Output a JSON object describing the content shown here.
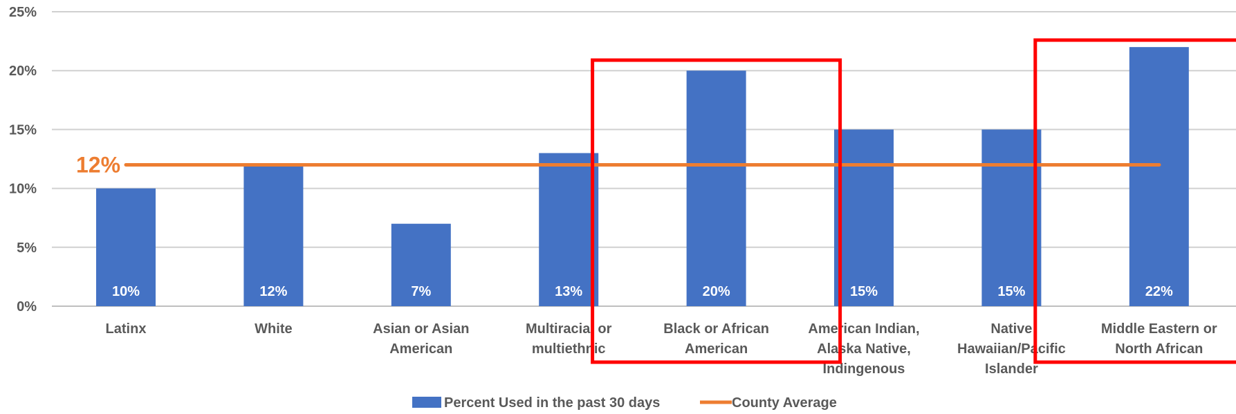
{
  "chart_data": {
    "type": "bar",
    "categories": [
      [
        "Latinx"
      ],
      [
        "White"
      ],
      [
        "Asian or Asian",
        "American"
      ],
      [
        "Multiracial or",
        "multiethnic"
      ],
      [
        "Black or African",
        "American"
      ],
      [
        "American Indian,",
        "Alaska Native,",
        "Indingenous"
      ],
      [
        "Native",
        "Hawaiian/Pacific",
        "Islander"
      ],
      [
        "Middle Eastern or",
        "North African"
      ]
    ],
    "series": [
      {
        "name": "Percent Used in the past 30 days",
        "type": "bar",
        "color": "#4472C4",
        "values": [
          10,
          12,
          7,
          13,
          20,
          15,
          15,
          22
        ],
        "data_labels": [
          "10%",
          "12%",
          "7%",
          "13%",
          "20%",
          "15%",
          "15%",
          "22%"
        ]
      },
      {
        "name": "County Average",
        "type": "line",
        "color": "#ED7D31",
        "value": 12,
        "label": "12%"
      }
    ],
    "yticks": [
      0,
      5,
      10,
      15,
      20,
      25
    ],
    "ytick_labels": [
      "0%",
      "5%",
      "10%",
      "15%",
      "20%",
      "25%"
    ],
    "ylim": [
      0,
      25
    ],
    "grid": true,
    "legend": "bottom",
    "highlighted_categories": [
      4,
      7
    ],
    "highlight_color": "#FF0000"
  }
}
